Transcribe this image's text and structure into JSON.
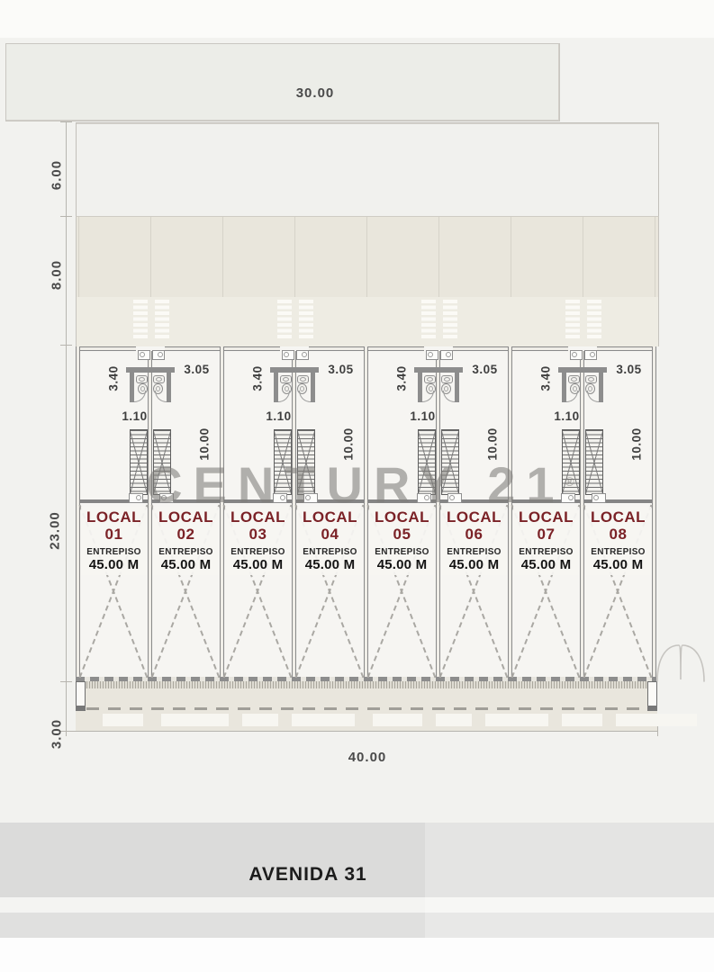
{
  "plan": {
    "dims": {
      "top_width": "30.00",
      "setback_depth": "6.00",
      "band_depth": "8.00",
      "building_depth": "23.00",
      "sidewalk_depth": "3.00",
      "frontage_width": "40.00"
    },
    "pair_dims": {
      "bath_width": "3.40",
      "bath_side": "3.05",
      "stair_width": "1.10",
      "unit_depth": "10.00"
    },
    "units": [
      {
        "label": "LOCAL",
        "number": "01",
        "mezzanine": "ENTREPISO",
        "area": "45.00 M"
      },
      {
        "label": "LOCAL",
        "number": "02",
        "mezzanine": "ENTREPISO",
        "area": "45.00 M"
      },
      {
        "label": "LOCAL",
        "number": "03",
        "mezzanine": "ENTREPISO",
        "area": "45.00 M"
      },
      {
        "label": "LOCAL",
        "number": "04",
        "mezzanine": "ENTREPISO",
        "area": "45.00 M"
      },
      {
        "label": "LOCAL",
        "number": "05",
        "mezzanine": "ENTREPISO",
        "area": "45.00 M"
      },
      {
        "label": "LOCAL",
        "number": "06",
        "mezzanine": "ENTREPISO",
        "area": "45.00 M"
      },
      {
        "label": "LOCAL",
        "number": "07",
        "mezzanine": "ENTREPISO",
        "area": "45.00 M"
      },
      {
        "label": "LOCAL",
        "number": "08",
        "mezzanine": "ENTREPISO",
        "area": "45.00 M"
      }
    ]
  },
  "watermark": {
    "text": "CENTURY 21",
    "reg": "®"
  },
  "street": {
    "name": "AVENIDA 31"
  },
  "colors": {
    "accent_maroon": "#7b2227",
    "wall_gray": "#8a8a8a",
    "band_beige": "#e9e6dc",
    "sidewalk": "#e9e6dd",
    "street_band": "#dbdbda",
    "dim_text": "#4a4a4a",
    "watermark_gray": "#8a8a88"
  }
}
